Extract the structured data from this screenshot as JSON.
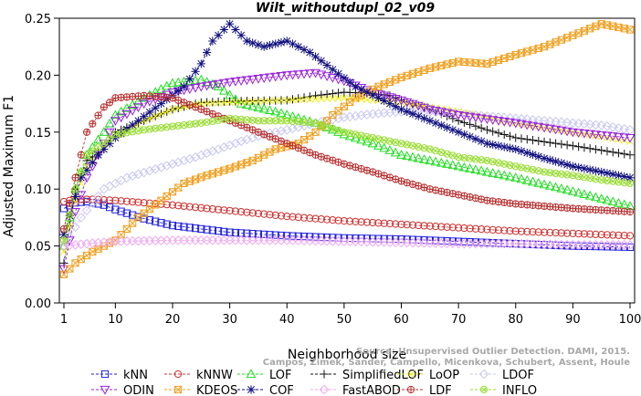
{
  "chart_data": {
    "type": "line",
    "title": "Wilt_withoutdupl_02_v09",
    "xlabel": "Neighborhood size",
    "ylabel": "Adjusted Maximum F1",
    "xlim": [
      1,
      100
    ],
    "ylim": [
      0,
      0.25
    ],
    "xticks": [
      "1",
      "10",
      "20",
      "30",
      "40",
      "50",
      "60",
      "70",
      "80",
      "90",
      "100"
    ],
    "yticks": [
      "0.00",
      "0.05",
      "0.10",
      "0.15",
      "0.20",
      "0.25"
    ],
    "grid": false,
    "legend_position": "bottom",
    "watermark": [
      "Source: Unsupervised Outlier Detection. DAMI, 2015.",
      "Campos, Zimek, Sander, Campello, Micenkova, Schubert, Assent, Houle"
    ],
    "series": [
      {
        "name": "kNN",
        "color": "#2020dd",
        "marker": "square",
        "points": [
          [
            1,
            0.083
          ],
          [
            3,
            0.088
          ],
          [
            5,
            0.089
          ],
          [
            8,
            0.086
          ],
          [
            10,
            0.082
          ],
          [
            15,
            0.074
          ],
          [
            20,
            0.068
          ],
          [
            25,
            0.065
          ],
          [
            30,
            0.062
          ],
          [
            40,
            0.059
          ],
          [
            50,
            0.057
          ],
          [
            60,
            0.056
          ],
          [
            70,
            0.054
          ],
          [
            80,
            0.052
          ],
          [
            90,
            0.05
          ],
          [
            100,
            0.049
          ]
        ]
      },
      {
        "name": "kNNW",
        "color": "#d03030",
        "marker": "circle",
        "points": [
          [
            1,
            0.089
          ],
          [
            3,
            0.091
          ],
          [
            6,
            0.091
          ],
          [
            10,
            0.09
          ],
          [
            20,
            0.086
          ],
          [
            30,
            0.081
          ],
          [
            40,
            0.076
          ],
          [
            50,
            0.072
          ],
          [
            60,
            0.069
          ],
          [
            70,
            0.066
          ],
          [
            80,
            0.063
          ],
          [
            90,
            0.061
          ],
          [
            100,
            0.059
          ]
        ]
      },
      {
        "name": "LOF",
        "color": "#22dd22",
        "marker": "triangle",
        "points": [
          [
            1,
            0.05
          ],
          [
            3,
            0.1
          ],
          [
            5,
            0.13
          ],
          [
            8,
            0.15
          ],
          [
            10,
            0.165
          ],
          [
            15,
            0.18
          ],
          [
            20,
            0.193
          ],
          [
            25,
            0.196
          ],
          [
            28,
            0.19
          ],
          [
            32,
            0.175
          ],
          [
            38,
            0.168
          ],
          [
            45,
            0.158
          ],
          [
            50,
            0.148
          ],
          [
            55,
            0.14
          ],
          [
            60,
            0.13
          ],
          [
            70,
            0.12
          ],
          [
            80,
            0.11
          ],
          [
            90,
            0.098
          ],
          [
            100,
            0.085
          ]
        ]
      },
      {
        "name": "SimplifiedLOF",
        "color": "#111111",
        "marker": "plus",
        "points": [
          [
            1,
            0.035
          ],
          [
            3,
            0.1
          ],
          [
            5,
            0.125
          ],
          [
            8,
            0.135
          ],
          [
            10,
            0.15
          ],
          [
            15,
            0.16
          ],
          [
            20,
            0.17
          ],
          [
            25,
            0.176
          ],
          [
            30,
            0.177
          ],
          [
            40,
            0.178
          ],
          [
            45,
            0.182
          ],
          [
            50,
            0.185
          ],
          [
            55,
            0.184
          ],
          [
            58,
            0.182
          ],
          [
            60,
            0.178
          ],
          [
            65,
            0.17
          ],
          [
            70,
            0.16
          ],
          [
            75,
            0.152
          ],
          [
            80,
            0.145
          ],
          [
            90,
            0.138
          ],
          [
            100,
            0.13
          ]
        ]
      },
      {
        "name": "LoOP",
        "color": "#eeee22",
        "marker": "cross",
        "points": [
          [
            1,
            0.045
          ],
          [
            3,
            0.09
          ],
          [
            5,
            0.12
          ],
          [
            10,
            0.145
          ],
          [
            15,
            0.16
          ],
          [
            20,
            0.17
          ],
          [
            25,
            0.175
          ],
          [
            30,
            0.176
          ],
          [
            40,
            0.178
          ],
          [
            50,
            0.18
          ],
          [
            60,
            0.176
          ],
          [
            70,
            0.168
          ],
          [
            80,
            0.158
          ],
          [
            90,
            0.15
          ],
          [
            100,
            0.142
          ]
        ]
      },
      {
        "name": "LDOF",
        "color": "#c8c8f0",
        "marker": "diamond",
        "points": [
          [
            1,
            0.05
          ],
          [
            4,
            0.075
          ],
          [
            8,
            0.1
          ],
          [
            12,
            0.11
          ],
          [
            16,
            0.116
          ],
          [
            20,
            0.122
          ],
          [
            24,
            0.128
          ],
          [
            28,
            0.135
          ],
          [
            32,
            0.142
          ],
          [
            36,
            0.148
          ],
          [
            40,
            0.152
          ],
          [
            45,
            0.158
          ],
          [
            50,
            0.163
          ],
          [
            55,
            0.166
          ],
          [
            60,
            0.168
          ],
          [
            65,
            0.168
          ],
          [
            70,
            0.166
          ],
          [
            75,
            0.164
          ],
          [
            80,
            0.162
          ],
          [
            85,
            0.16
          ],
          [
            90,
            0.158
          ],
          [
            95,
            0.156
          ],
          [
            100,
            0.152
          ]
        ]
      },
      {
        "name": "ODIN",
        "color": "#9922dd",
        "marker": "triangle-down",
        "points": [
          [
            1,
            0.03
          ],
          [
            3,
            0.08
          ],
          [
            5,
            0.11
          ],
          [
            8,
            0.14
          ],
          [
            10,
            0.16
          ],
          [
            15,
            0.175
          ],
          [
            20,
            0.185
          ],
          [
            25,
            0.19
          ],
          [
            30,
            0.194
          ],
          [
            35,
            0.197
          ],
          [
            40,
            0.2
          ],
          [
            45,
            0.202
          ],
          [
            50,
            0.195
          ],
          [
            55,
            0.185
          ],
          [
            60,
            0.178
          ],
          [
            65,
            0.17
          ],
          [
            70,
            0.165
          ],
          [
            80,
            0.158
          ],
          [
            90,
            0.15
          ],
          [
            100,
            0.145
          ]
        ]
      },
      {
        "name": "KDEOS",
        "color": "#f0a020",
        "marker": "square-x",
        "points": [
          [
            1,
            0.025
          ],
          [
            3,
            0.035
          ],
          [
            6,
            0.045
          ],
          [
            10,
            0.055
          ],
          [
            14,
            0.075
          ],
          [
            18,
            0.09
          ],
          [
            22,
            0.105
          ],
          [
            26,
            0.112
          ],
          [
            30,
            0.118
          ],
          [
            34,
            0.125
          ],
          [
            38,
            0.135
          ],
          [
            42,
            0.14
          ],
          [
            45,
            0.15
          ],
          [
            48,
            0.165
          ],
          [
            52,
            0.18
          ],
          [
            56,
            0.19
          ],
          [
            60,
            0.198
          ],
          [
            65,
            0.206
          ],
          [
            70,
            0.212
          ],
          [
            75,
            0.21
          ],
          [
            80,
            0.218
          ],
          [
            85,
            0.225
          ],
          [
            90,
            0.235
          ],
          [
            95,
            0.245
          ],
          [
            100,
            0.24
          ]
        ]
      },
      {
        "name": "COF",
        "color": "#101080",
        "marker": "star",
        "points": [
          [
            1,
            0.06
          ],
          [
            4,
            0.11
          ],
          [
            7,
            0.13
          ],
          [
            10,
            0.145
          ],
          [
            14,
            0.16
          ],
          [
            18,
            0.175
          ],
          [
            22,
            0.19
          ],
          [
            25,
            0.21
          ],
          [
            27,
            0.23
          ],
          [
            30,
            0.245
          ],
          [
            33,
            0.23
          ],
          [
            36,
            0.225
          ],
          [
            40,
            0.23
          ],
          [
            44,
            0.22
          ],
          [
            48,
            0.205
          ],
          [
            52,
            0.19
          ],
          [
            56,
            0.18
          ],
          [
            60,
            0.17
          ],
          [
            65,
            0.16
          ],
          [
            70,
            0.15
          ],
          [
            75,
            0.14
          ],
          [
            80,
            0.135
          ],
          [
            85,
            0.127
          ],
          [
            90,
            0.12
          ],
          [
            95,
            0.115
          ],
          [
            100,
            0.11
          ]
        ]
      },
      {
        "name": "FastABOD",
        "color": "#f0a8f0",
        "marker": "diamond",
        "points": [
          [
            1,
            0.05
          ],
          [
            5,
            0.052
          ],
          [
            10,
            0.054
          ],
          [
            20,
            0.055
          ],
          [
            30,
            0.055
          ],
          [
            40,
            0.055
          ],
          [
            50,
            0.054
          ],
          [
            60,
            0.053
          ],
          [
            70,
            0.052
          ],
          [
            80,
            0.052
          ],
          [
            90,
            0.051
          ],
          [
            100,
            0.051
          ]
        ]
      },
      {
        "name": "LDF",
        "color": "#b83030",
        "marker": "circle-plus",
        "points": [
          [
            1,
            0.065
          ],
          [
            3,
            0.11
          ],
          [
            5,
            0.15
          ],
          [
            8,
            0.172
          ],
          [
            10,
            0.18
          ],
          [
            15,
            0.182
          ],
          [
            20,
            0.18
          ],
          [
            25,
            0.17
          ],
          [
            30,
            0.16
          ],
          [
            35,
            0.15
          ],
          [
            40,
            0.14
          ],
          [
            45,
            0.13
          ],
          [
            50,
            0.122
          ],
          [
            55,
            0.115
          ],
          [
            60,
            0.107
          ],
          [
            65,
            0.1
          ],
          [
            70,
            0.095
          ],
          [
            75,
            0.09
          ],
          [
            80,
            0.087
          ],
          [
            90,
            0.083
          ],
          [
            100,
            0.08
          ]
        ]
      },
      {
        "name": "INFLO",
        "color": "#99dd33",
        "marker": "circle-x",
        "points": [
          [
            1,
            0.055
          ],
          [
            3,
            0.1
          ],
          [
            5,
            0.13
          ],
          [
            8,
            0.14
          ],
          [
            10,
            0.148
          ],
          [
            15,
            0.152
          ],
          [
            20,
            0.155
          ],
          [
            25,
            0.158
          ],
          [
            30,
            0.162
          ],
          [
            35,
            0.16
          ],
          [
            40,
            0.16
          ],
          [
            45,
            0.158
          ],
          [
            50,
            0.15
          ],
          [
            55,
            0.145
          ],
          [
            60,
            0.14
          ],
          [
            65,
            0.135
          ],
          [
            70,
            0.128
          ],
          [
            75,
            0.125
          ],
          [
            80,
            0.12
          ],
          [
            85,
            0.115
          ],
          [
            90,
            0.112
          ],
          [
            95,
            0.108
          ],
          [
            100,
            0.105
          ]
        ]
      }
    ]
  }
}
